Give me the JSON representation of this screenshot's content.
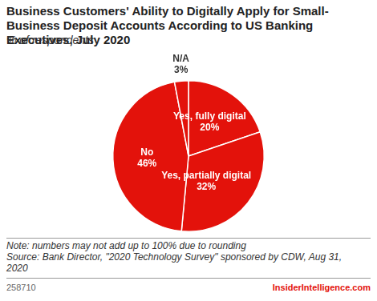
{
  "chart_data": {
    "type": "pie",
    "title": "Business Customers' Ability to Digitally Apply for Small-Business Deposit Accounts According to US Banking Executives, July 2020",
    "subtitle": "% of respondents",
    "categories": [
      "Yes, fully digital",
      "Yes, partially digital",
      "No",
      "N/A"
    ],
    "values": [
      20,
      32,
      46,
      3
    ],
    "value_labels": [
      "20%",
      "32%",
      "46%",
      "3%"
    ],
    "colors": [
      "#e3120b",
      "#e3120b",
      "#e3120b",
      "#e3120b"
    ],
    "data_labels": true,
    "note": "Note: numbers may not add up to 100% due to rounding",
    "source": "Source: Bank Director, \"2020 Technology Survey\" sponsored by CDW, Aug 31, 2020",
    "chart_id": "258710",
    "brand": "InsiderIntelligence.com"
  }
}
